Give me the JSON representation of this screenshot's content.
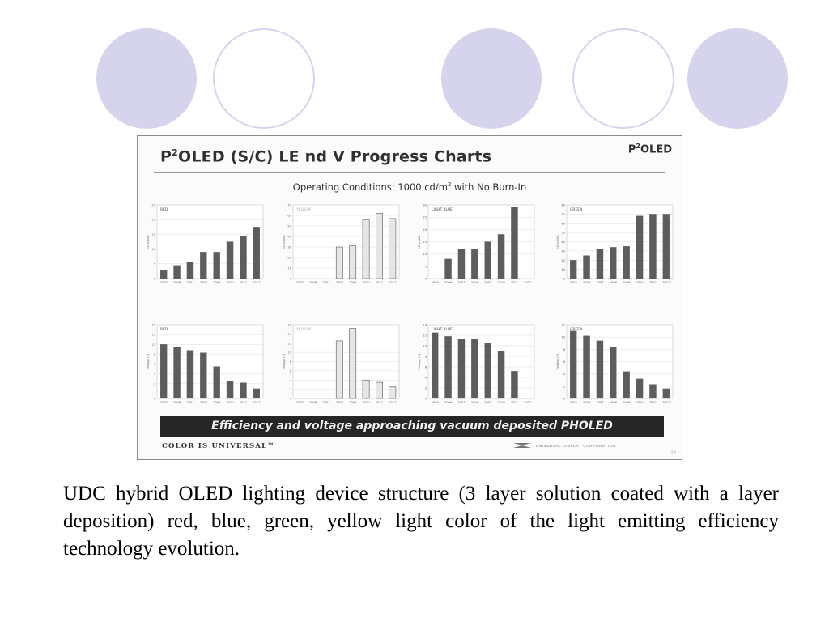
{
  "slide": {
    "title_main": "P",
    "title_sup": "2",
    "title_rest": "OLED (S/C) LE nd V Progress Charts",
    "brand_main": "P",
    "brand_sup": "2",
    "brand_rest": "OLED",
    "operating_prefix": "Operating Conditions:  1000 cd/m",
    "operating_sup": "2",
    "operating_suffix": " with No Burn-In",
    "banner": "Efficiency and voltage approaching vacuum deposited PHOLED",
    "tagline": "COLOR IS UNIVERSAL™",
    "company": "UNIVERSAL DISPLAY CORPORATION",
    "page_number": "28"
  },
  "caption": "UDC hybrid OLED lighting device structure (3 layer solution coated with a layer deposition) red, blue, green, yellow light color of the light emitting efficiency technology evolution.",
  "colors": {
    "accent_circle": "#d5d4ec",
    "bar_dark": "#5d5d5d",
    "bar_light": "#e6e6e6",
    "banner_bg": "#262626"
  },
  "chart_data": [
    {
      "type": "bar",
      "title": "RED",
      "ylabel": "LE (cd/A)",
      "ylim": [
        0,
        25
      ],
      "yticks": [
        0,
        5,
        10,
        15,
        20,
        25
      ],
      "categories": [
        "2005",
        "2006",
        "2007",
        "2008",
        "2009",
        "2010",
        "2011",
        "2012"
      ],
      "values": [
        3,
        4.5,
        5.5,
        9,
        9,
        12.5,
        14.5,
        17.5
      ],
      "bar_color": "#5d5d5d"
    },
    {
      "type": "bar",
      "title": "YELLOW",
      "ylabel": "LE (cd/A)",
      "ylim": [
        0,
        70
      ],
      "yticks": [
        0,
        10,
        20,
        30,
        40,
        50,
        60,
        70
      ],
      "categories": [
        "2005",
        "2006",
        "2007",
        "2008",
        "2009",
        "2010",
        "2011",
        "2012"
      ],
      "values": [
        null,
        null,
        null,
        30,
        31,
        56,
        62,
        57
      ],
      "bar_color": "#e6e6e6"
    },
    {
      "type": "bar",
      "title": "LIGHT BLUE",
      "ylabel": "LE (cd/A)",
      "ylim": [
        0,
        30
      ],
      "yticks": [
        0,
        5,
        10,
        15,
        20,
        25,
        30
      ],
      "categories": [
        "2005",
        "2006",
        "2007",
        "2008",
        "2009",
        "2010",
        "2011",
        "2012"
      ],
      "values": [
        null,
        8,
        12,
        12,
        15,
        18,
        29,
        null
      ],
      "bar_color": "#5d5d5d"
    },
    {
      "type": "bar",
      "title": "GREEN",
      "ylabel": "LE (cd/A)",
      "ylim": [
        0,
        80
      ],
      "yticks": [
        0,
        10,
        20,
        30,
        40,
        50,
        60,
        70,
        80
      ],
      "categories": [
        "2005",
        "2006",
        "2007",
        "2008",
        "2009",
        "2010",
        "2011",
        "2012"
      ],
      "values": [
        20,
        25,
        32,
        34,
        35,
        68,
        70,
        70
      ],
      "bar_color": "#5d5d5d"
    },
    {
      "type": "bar",
      "title": "RED",
      "ylabel": "Voltage (V)",
      "ylim": [
        0,
        15
      ],
      "yticks": [
        0,
        3,
        5,
        7,
        9,
        11,
        13,
        15
      ],
      "categories": [
        "2005",
        "2006",
        "2007",
        "2008",
        "2009",
        "2010",
        "2011",
        "2012"
      ],
      "values": [
        11,
        10.5,
        9.8,
        9.3,
        6.5,
        3.5,
        3.2,
        2
      ],
      "bar_color": "#5d5d5d"
    },
    {
      "type": "bar",
      "title": "YELLOW",
      "ylabel": "Voltage (V)",
      "ylim": [
        0,
        16
      ],
      "yticks": [
        0,
        2,
        4,
        6,
        8,
        10,
        12,
        14,
        16
      ],
      "categories": [
        "2005",
        "2006",
        "2007",
        "2008",
        "2009",
        "2010",
        "2011",
        "2012"
      ],
      "values": [
        null,
        null,
        null,
        12.5,
        15.2,
        4,
        3.5,
        2.5
      ],
      "bar_color": "#e6e6e6"
    },
    {
      "type": "bar",
      "title": "LIGHT BLUE",
      "ylabel": "Voltage (V)",
      "ylim": [
        0,
        14
      ],
      "yticks": [
        0,
        2,
        4,
        6,
        8,
        10,
        12,
        14
      ],
      "categories": [
        "2005",
        "2006",
        "2007",
        "2008",
        "2009",
        "2010",
        "2011",
        "2012"
      ],
      "values": [
        12.5,
        11.8,
        11.3,
        11.3,
        10.6,
        9,
        5.2,
        null
      ],
      "bar_color": "#5d5d5d"
    },
    {
      "type": "bar",
      "title": "GREEN",
      "ylabel": "Voltage (V)",
      "ylim": [
        0,
        12
      ],
      "yticks": [
        0,
        2,
        4,
        6,
        8,
        10,
        12
      ],
      "categories": [
        "2005",
        "2006",
        "2007",
        "2008",
        "2009",
        "2010",
        "2011",
        "2012"
      ],
      "values": [
        11,
        10.2,
        9.4,
        8.4,
        4.4,
        3.2,
        2.3,
        1.6
      ],
      "bar_color": "#5d5d5d"
    }
  ]
}
